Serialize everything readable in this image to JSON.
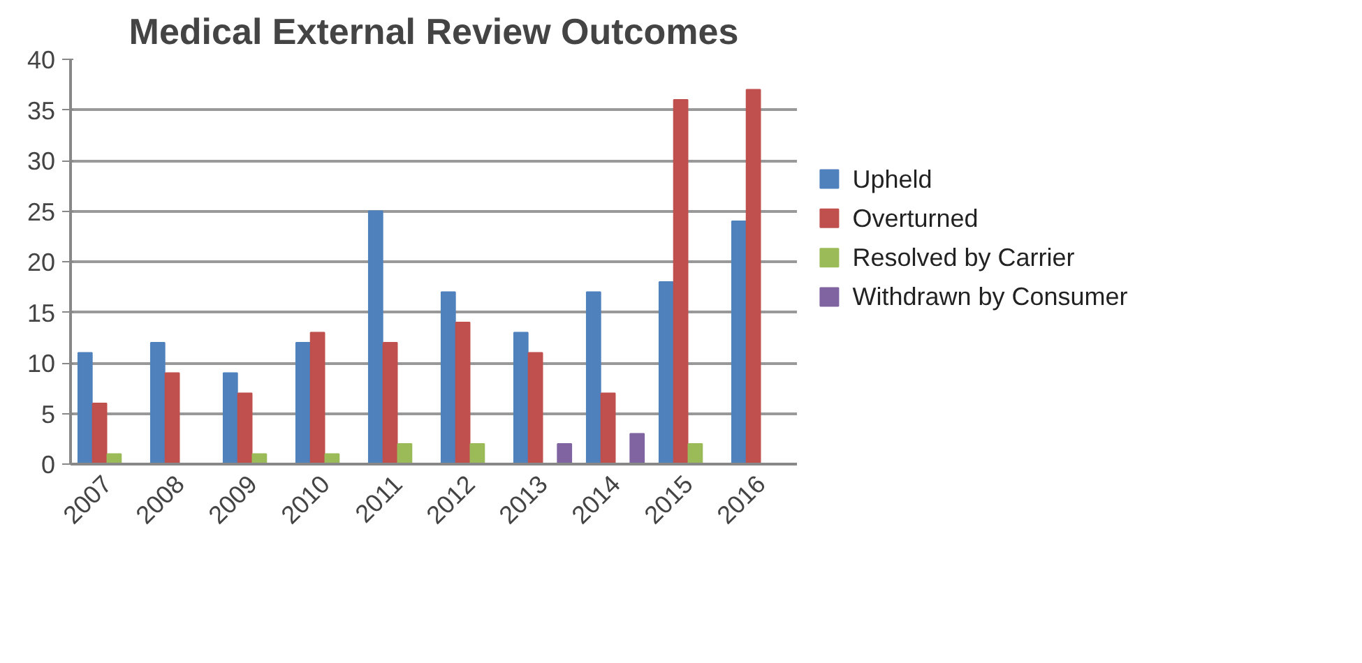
{
  "chart_data": {
    "type": "bar",
    "title": "Medical External Review Outcomes",
    "categories": [
      "2007",
      "2008",
      "2009",
      "2010",
      "2011",
      "2012",
      "2013",
      "2014",
      "2015",
      "2016"
    ],
    "series": [
      {
        "name": "Upheld",
        "color": "#4f81bd",
        "values": [
          11,
          12,
          9,
          12,
          25,
          17,
          13,
          17,
          18,
          24
        ]
      },
      {
        "name": "Overturned",
        "color": "#c0504d",
        "values": [
          6,
          9,
          7,
          13,
          12,
          14,
          11,
          7,
          36,
          37
        ]
      },
      {
        "name": "Resolved by Carrier",
        "color": "#9bbb59",
        "values": [
          1,
          0,
          1,
          1,
          2,
          2,
          0,
          0,
          2,
          0
        ]
      },
      {
        "name": "Withdrawn by Consumer",
        "color": "#8064a2",
        "values": [
          0,
          0,
          0,
          0,
          0,
          0,
          2,
          3,
          0,
          0
        ]
      }
    ],
    "ylim": [
      0,
      40
    ],
    "yticks": [
      0,
      5,
      10,
      15,
      20,
      25,
      30,
      35,
      40
    ],
    "grid": "y",
    "legend": "right"
  }
}
